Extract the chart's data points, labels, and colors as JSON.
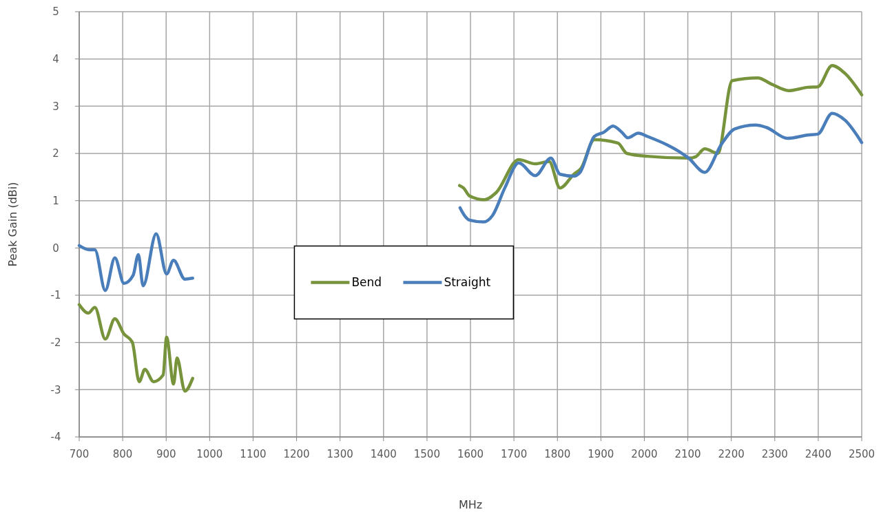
{
  "chart_data": {
    "type": "line",
    "xlabel": "MHz",
    "ylabel": "Peak Gain (dBi)",
    "xlim": [
      700,
      2500
    ],
    "ylim": [
      -4,
      5
    ],
    "xticks": [
      700,
      800,
      900,
      1000,
      1100,
      1200,
      1300,
      1400,
      1500,
      1600,
      1700,
      1800,
      1900,
      2000,
      2100,
      2200,
      2300,
      2400,
      2500
    ],
    "yticks": [
      -4,
      -3,
      -2,
      -1,
      0,
      1,
      2,
      3,
      4,
      5
    ],
    "grid": true,
    "legend": "center",
    "line_style": "solid",
    "marker": "none",
    "series": [
      {
        "name": "Bend",
        "color": "#77933c",
        "x": [
          700,
          721,
          736,
          760,
          782,
          803,
          822,
          838,
          851,
          871,
          893,
          901,
          917,
          925,
          943,
          961,
          1200,
          1575,
          1584,
          1598,
          1632,
          1659,
          1711,
          1749,
          1781,
          1806,
          1838,
          1854,
          1885,
          1939,
          1960,
          2007,
          2102,
          2118,
          2139,
          2169,
          2202,
          2261,
          2292,
          2332,
          2376,
          2399,
          2432,
          2462,
          2500
        ],
        "values": [
          -1.2,
          -1.38,
          -1.26,
          -1.93,
          -1.5,
          -1.82,
          -1.99,
          -2.83,
          -2.57,
          -2.83,
          -2.69,
          -1.89,
          -2.88,
          -2.33,
          -3.03,
          -2.76,
          null,
          1.32,
          1.27,
          1.1,
          1.02,
          1.17,
          1.87,
          1.78,
          1.83,
          1.27,
          1.56,
          1.68,
          2.29,
          2.22,
          2.0,
          1.94,
          1.9,
          1.93,
          2.1,
          2.0,
          3.54,
          3.6,
          3.47,
          3.33,
          3.4,
          3.41,
          3.86,
          3.69,
          3.24
        ]
      },
      {
        "name": "Straight",
        "color": "#4a7ebb",
        "x": [
          700,
          724,
          736,
          760,
          782,
          803,
          824,
          836,
          847,
          877,
          901,
          917,
          943,
          961,
          1200,
          1576,
          1580,
          1598,
          1630,
          1651,
          1679,
          1711,
          1749,
          1785,
          1806,
          1838,
          1852,
          1885,
          1907,
          1928,
          1948,
          1962,
          1986,
          2007,
          2102,
          2139,
          2177,
          2208,
          2256,
          2281,
          2329,
          2376,
          2399,
          2432,
          2462,
          2500
        ],
        "values": [
          0.05,
          -0.04,
          -0.04,
          -0.9,
          -0.21,
          -0.75,
          -0.58,
          -0.14,
          -0.8,
          0.3,
          -0.55,
          -0.26,
          -0.66,
          -0.64,
          null,
          0.85,
          0.78,
          0.59,
          0.55,
          0.69,
          1.27,
          1.8,
          1.53,
          1.9,
          1.56,
          1.52,
          1.6,
          2.36,
          2.45,
          2.58,
          2.45,
          2.33,
          2.43,
          2.36,
          1.9,
          1.6,
          2.19,
          2.52,
          2.6,
          2.55,
          2.32,
          2.39,
          2.41,
          2.85,
          2.7,
          2.23
        ]
      }
    ]
  }
}
